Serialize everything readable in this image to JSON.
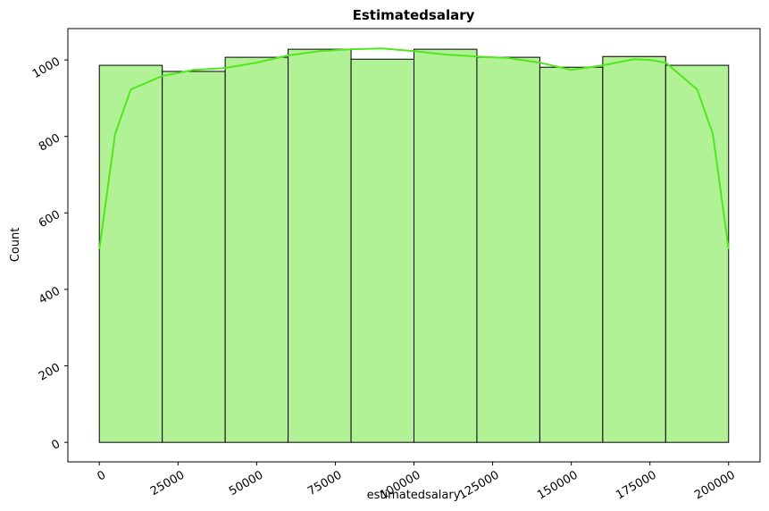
{
  "chart_data": {
    "type": "histogram",
    "title": "Estimatedsalary",
    "xlabel": "estimatedsalary",
    "ylabel": "Count",
    "bins": [
      0,
      20000,
      40000,
      60000,
      80000,
      100000,
      120000,
      140000,
      160000,
      180000,
      200000
    ],
    "values": [
      986,
      970,
      1007,
      1028,
      1002,
      1028,
      1007,
      981,
      1009,
      986
    ],
    "color": "#b2f296",
    "edgecolor": "#000000",
    "kde": {
      "color": "#52e61e",
      "x": [
        0,
        5000,
        10000,
        20000,
        30000,
        40000,
        50000,
        60000,
        70000,
        80000,
        90000,
        100000,
        110000,
        120000,
        130000,
        140000,
        150000,
        160000,
        170000,
        175000,
        180000,
        190000,
        195000,
        200000
      ],
      "y": [
        505,
        806,
        923,
        958,
        974,
        979,
        993,
        1012,
        1023,
        1028,
        1030,
        1023,
        1014,
        1009,
        1005,
        993,
        974,
        986,
        1002,
        1000,
        993,
        923,
        806,
        505
      ]
    },
    "xlim": [
      -10000,
      210000
    ],
    "ylim": [
      -51,
      1082
    ],
    "xticks": [
      0,
      25000,
      50000,
      75000,
      100000,
      125000,
      150000,
      175000,
      200000
    ],
    "yticks": [
      0,
      200,
      400,
      600,
      800,
      1000
    ]
  }
}
